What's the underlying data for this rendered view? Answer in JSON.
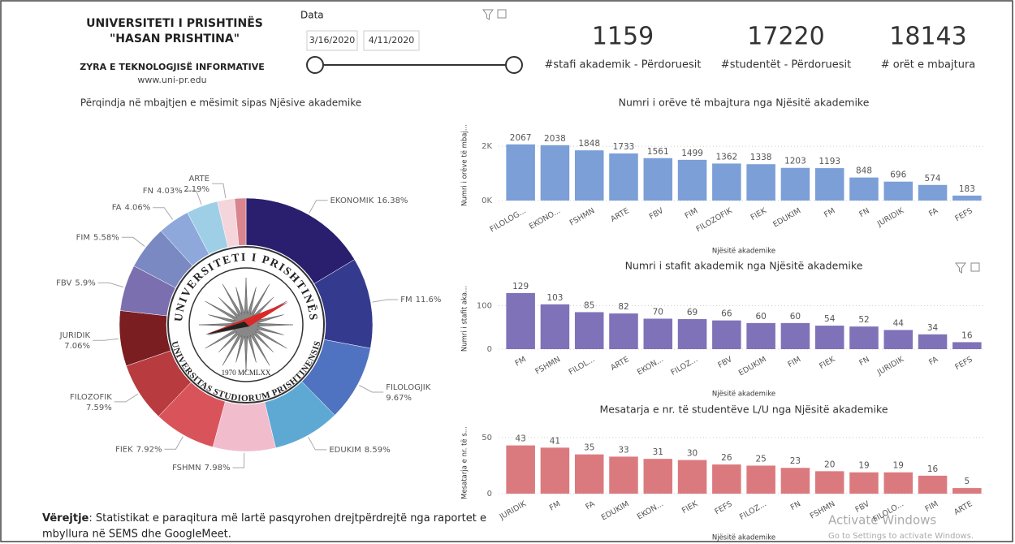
{
  "header": {
    "title": "UNIVERSITETI I PRISHTINËS",
    "subtitle": "\"HASAN PRISHTINA\"",
    "office": "ZYRA E TEKNOLOGJISË INFORMATIVE",
    "website": "www.uni-pr.edu"
  },
  "filter": {
    "label": "Data",
    "start": "3/16/2020",
    "end": "4/11/2020"
  },
  "kpis": [
    {
      "value": 1159,
      "label": "#stafi akademik - Përdoruesit"
    },
    {
      "value": 17220,
      "label": "#studentët - Përdoruesit"
    },
    {
      "value": 18143,
      "label": "# orët e mbajtura"
    }
  ],
  "logo": {
    "top": "UNIVERSITETI I PRISHTINËS",
    "bottom": "UNIVERSITAS STUDIORUM PRISHTINENSIS",
    "year": "1970 MCMLXX"
  },
  "note": {
    "label": "Vërejtje",
    "lines": [
      ": Statistikat e paraqitura më lartë pasqyrohen drejtpërdrejtë nga raportet e",
      "mbyllura në SEMS dhe GoogleMeet."
    ]
  },
  "watermark": {
    "title": "Activate Windows",
    "text": "Go to Settings to activate Windows."
  },
  "chart_data": [
    {
      "type": "pie",
      "title": "Përqindja në mbajtjen e mësimit sipas Njësive akademike",
      "categories": [
        "EKONOMIK",
        "FM",
        "FILOLOGJIK",
        "EDUKIM",
        "FSHMN",
        "FIEK",
        "FILOZOFIK",
        "JURIDIK",
        "FBV",
        "FIM",
        "FA",
        "FN",
        "ARTE",
        null
      ],
      "values": [
        16.38,
        11.6,
        9.67,
        8.59,
        7.98,
        7.92,
        7.59,
        7.06,
        5.9,
        5.58,
        4.06,
        4.03,
        2.19,
        1.45
      ],
      "value_labels": [
        "16.38%",
        "11.6%",
        "9.67%",
        "8.59%",
        "7.98%",
        "7.92%",
        "7.59%",
        "7.06%",
        "5.9%",
        "5.58%",
        "4.06%",
        "4.03%",
        "2.19%",
        null
      ],
      "colors": [
        "#2a1f6e",
        "#343a8e",
        "#4f73c0",
        "#5ea8d4",
        "#f1bccb",
        "#d9545a",
        "#b83b3f",
        "#7a1e22",
        "#7b6fb0",
        "#7a89c2",
        "#8fa8dc",
        "#9fcfe6",
        "#f5d5dc",
        "#d9858f"
      ]
    },
    {
      "type": "bar",
      "title": "Numri i orëve të mbajtura nga Njësitë akademike",
      "x_label": "Njësitë akademike",
      "y_label": "Numri i orëve të mbaj...",
      "categories": [
        "FILOLOG...",
        "EKONO...",
        "FSHMN",
        "ARTE",
        "FBV",
        "FIM",
        "FILOZOFIK",
        "FIEK",
        "EDUKIM",
        "FM",
        "FN",
        "JURIDIK",
        "FA",
        "FEFS"
      ],
      "values": [
        2067,
        2038,
        1848,
        1733,
        1561,
        1499,
        1362,
        1338,
        1203,
        1193,
        848,
        696,
        574,
        183
      ],
      "color": "#7b9fd6",
      "ylim": [
        0,
        2600
      ],
      "yticks": [
        {
          "value": 0,
          "label": "0K"
        },
        {
          "value": 2000,
          "label": "2K"
        }
      ],
      "grid": true
    },
    {
      "type": "bar",
      "title": "Numri i stafit akademik nga Njësitë akademike",
      "x_label": "Njësitë akademike",
      "y_label": "Numri i stafit aka...",
      "categories": [
        "FM",
        "FSHMN",
        "FILOL...",
        "ARTE",
        "EKON...",
        "FILOZ...",
        "FBV",
        "EDUKIM",
        "FIM",
        "FIEK",
        "FN",
        "JURIDIK",
        "FA",
        "FEFS"
      ],
      "values": [
        129,
        103,
        85,
        82,
        70,
        69,
        66,
        60,
        60,
        54,
        52,
        44,
        34,
        16
      ],
      "color": "#7f72b8",
      "ylim": [
        0,
        140
      ],
      "yticks": [
        0,
        100
      ],
      "grid": true
    },
    {
      "type": "bar",
      "title": "Mesatarja e nr. të studentëve L/U nga Njësitë akademike",
      "x_label": "Njësitë akademike",
      "y_label": "Mesatarja e nr. të s...",
      "categories": [
        "JURIDIK",
        "FM",
        "FA",
        "EDUKIM",
        "EKON...",
        "FIEK",
        "FEFS",
        "FILOZ...",
        "FN",
        "FSHMN",
        "FBV",
        "FILOLO...",
        "FIM",
        "ARTE"
      ],
      "values": [
        43,
        41,
        35,
        33,
        31,
        30,
        26,
        25,
        23,
        20,
        19,
        19,
        16,
        5
      ],
      "color": "#db7a7e",
      "ylim": [
        0,
        55
      ],
      "yticks": [
        0,
        50
      ],
      "grid": true
    }
  ]
}
